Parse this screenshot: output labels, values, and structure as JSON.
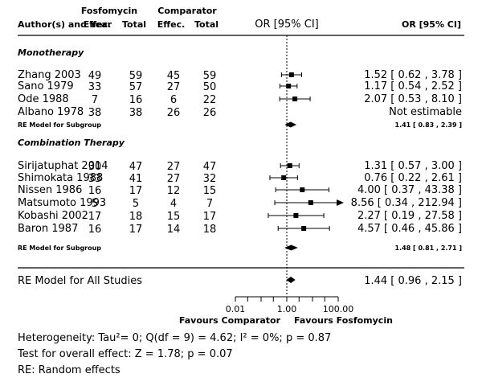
{
  "colors": {
    "ink": "#000000",
    "background": "#ffffff",
    "separator": "#000000"
  },
  "header": {
    "group1": "Fosfomycin",
    "group2": "Comparator",
    "study": "Author(s) and Year",
    "effec": "Effec.",
    "total": "Total",
    "ci_center": "OR [95% CI]",
    "ci_right": "OR [95% CI]"
  },
  "chart_data": {
    "type": "forest",
    "scale": "log",
    "xlim": [
      0.01,
      100
    ],
    "reference_line": 1,
    "x_ticks": [
      {
        "value": 0.01,
        "label": "0.01",
        "show_label": true
      },
      {
        "value": 0.03,
        "label": "",
        "show_label": false
      },
      {
        "value": 0.1,
        "label": "",
        "show_label": false
      },
      {
        "value": 0.3,
        "label": "",
        "show_label": false
      },
      {
        "value": 1,
        "label": "1.00",
        "show_label": true
      },
      {
        "value": 3,
        "label": "",
        "show_label": false
      },
      {
        "value": 10,
        "label": "",
        "show_label": false
      },
      {
        "value": 30,
        "label": "",
        "show_label": false
      },
      {
        "value": 100,
        "label": "100.00",
        "show_label": true
      }
    ],
    "favours_left": "Favours Comparator",
    "favours_right": "Favours Fosfomycin",
    "groups": [
      {
        "name": "Monotherapy",
        "studies": [
          {
            "study": "Zhang 2003",
            "fos_e": "49",
            "fos_t": "59",
            "comp_e": "45",
            "comp_t": "59",
            "or": 1.52,
            "lo": 0.62,
            "hi": 3.78,
            "text": "1.52 [ 0.62 ,  3.78 ]",
            "estimable": true
          },
          {
            "study": "Sano 1979",
            "fos_e": "33",
            "fos_t": "57",
            "comp_e": "27",
            "comp_t": "50",
            "or": 1.17,
            "lo": 0.54,
            "hi": 2.52,
            "text": "1.17 [ 0.54 ,  2.52 ]",
            "estimable": true
          },
          {
            "study": "Ode 1988",
            "fos_e": "7",
            "fos_t": "16",
            "comp_e": "6",
            "comp_t": "22",
            "or": 2.07,
            "lo": 0.53,
            "hi": 8.1,
            "text": "2.07 [ 0.53 ,  8.10 ]",
            "estimable": true
          },
          {
            "study": "Albano 1978",
            "fos_e": "38",
            "fos_t": "38",
            "comp_e": "26",
            "comp_t": "26",
            "or": null,
            "lo": null,
            "hi": null,
            "text": "Not estimable",
            "estimable": false
          }
        ],
        "subgroup_label": "RE Model for Subgroup",
        "subgroup": {
          "or": 1.41,
          "lo": 0.83,
          "hi": 2.39,
          "text": "1.41 [ 0.83 , 2.39 ]"
        }
      },
      {
        "name": "Combination Therapy",
        "studies": [
          {
            "study": "Sirijatuphat 2014",
            "fos_e": "30",
            "fos_t": "47",
            "comp_e": "27",
            "comp_t": "47",
            "or": 1.31,
            "lo": 0.57,
            "hi": 3.0,
            "text": "1.31 [ 0.57 ,  3.00 ]",
            "estimable": true
          },
          {
            "study": "Shimokata 1988",
            "fos_e": "33",
            "fos_t": "41",
            "comp_e": "27",
            "comp_t": "32",
            "or": 0.76,
            "lo": 0.22,
            "hi": 2.61,
            "text": "0.76 [ 0.22 ,  2.61 ]",
            "estimable": true
          },
          {
            "study": "Nissen 1986",
            "fos_e": "16",
            "fos_t": "17",
            "comp_e": "12",
            "comp_t": "15",
            "or": 4.0,
            "lo": 0.37,
            "hi": 43.38,
            "text": "4.00 [ 0.37 , 43.38 ]",
            "estimable": true
          },
          {
            "study": "Matsumoto 1993",
            "fos_e": "5",
            "fos_t": "5",
            "comp_e": "4",
            "comp_t": "7",
            "or": 8.56,
            "lo": 0.34,
            "hi": 212.94,
            "text": "8.56 [ 0.34 , 212.94 ]",
            "estimable": true
          },
          {
            "study": "Kobashi 2002",
            "fos_e": "17",
            "fos_t": "18",
            "comp_e": "15",
            "comp_t": "17",
            "or": 2.27,
            "lo": 0.19,
            "hi": 27.58,
            "text": "2.27 [ 0.19 , 27.58 ]",
            "estimable": true
          },
          {
            "study": "Baron 1987",
            "fos_e": "16",
            "fos_t": "17",
            "comp_e": "14",
            "comp_t": "18",
            "or": 4.57,
            "lo": 0.46,
            "hi": 45.86,
            "text": "4.57 [ 0.46 , 45.86 ]",
            "estimable": true
          }
        ],
        "subgroup_label": "RE Model for Subgroup",
        "subgroup": {
          "or": 1.48,
          "lo": 0.81,
          "hi": 2.71,
          "text": "1.48 [ 0.81 , 2.71 ]"
        }
      }
    ],
    "overall_label": "RE Model for All Studies",
    "overall": {
      "or": 1.44,
      "lo": 0.96,
      "hi": 2.15,
      "text": "1.44 [ 0.96 ,  2.15 ]"
    }
  },
  "footer": {
    "heterogeneity": "Heterogeneity: Tau²= 0; Q(df = 9) = 4.62; I² = 0%; p = 0.87",
    "overall_effect": "Test for overall effect: Z = 1.78; p = 0.07",
    "note": "RE: Random effects"
  }
}
